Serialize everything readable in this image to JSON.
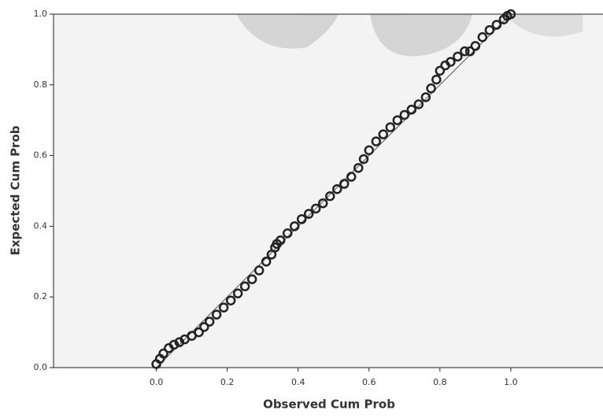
{
  "chart_data": {
    "type": "scatter",
    "x_label": "Observed Cum Prob",
    "y_label": "Expected Cum Prob",
    "xlim": [
      -0.29,
      1.26
    ],
    "ylim": [
      0,
      1
    ],
    "xticks": [
      {
        "value": 0,
        "label": "0.0"
      },
      0.2,
      0.4,
      0.6,
      0.8,
      {
        "value": 1,
        "label": "1.0"
      }
    ],
    "yticks": [
      {
        "value": 0,
        "label": "0.0"
      },
      0.2,
      0.4,
      0.6,
      0.8,
      {
        "value": 1,
        "label": "1.0"
      }
    ],
    "color": "#222222",
    "reference_line": {
      "x": [
        0,
        1
      ],
      "y": [
        0,
        1
      ],
      "color": "#555555"
    },
    "x": [
      0.0,
      0.01,
      0.02,
      0.035,
      0.05,
      0.065,
      0.08,
      0.1,
      0.12,
      0.135,
      0.15,
      0.17,
      0.19,
      0.21,
      0.23,
      0.25,
      0.27,
      0.29,
      0.31,
      0.325,
      0.335,
      0.34,
      0.35,
      0.37,
      0.39,
      0.41,
      0.43,
      0.45,
      0.47,
      0.49,
      0.51,
      0.53,
      0.55,
      0.57,
      0.585,
      0.6,
      0.62,
      0.64,
      0.66,
      0.68,
      0.7,
      0.72,
      0.74,
      0.76,
      0.775,
      0.79,
      0.8,
      0.815,
      0.83,
      0.85,
      0.87,
      0.885,
      0.9,
      0.92,
      0.94,
      0.96,
      0.98,
      0.99,
      1.0
    ],
    "values": [
      0.01,
      0.025,
      0.04,
      0.055,
      0.065,
      0.072,
      0.08,
      0.09,
      0.1,
      0.115,
      0.13,
      0.15,
      0.17,
      0.19,
      0.21,
      0.23,
      0.25,
      0.275,
      0.3,
      0.32,
      0.34,
      0.35,
      0.36,
      0.38,
      0.4,
      0.42,
      0.435,
      0.45,
      0.465,
      0.485,
      0.505,
      0.52,
      0.54,
      0.565,
      0.59,
      0.615,
      0.64,
      0.66,
      0.68,
      0.7,
      0.715,
      0.73,
      0.745,
      0.765,
      0.79,
      0.815,
      0.84,
      0.855,
      0.865,
      0.88,
      0.895,
      0.895,
      0.91,
      0.935,
      0.955,
      0.97,
      0.985,
      0.995,
      1.0
    ]
  }
}
